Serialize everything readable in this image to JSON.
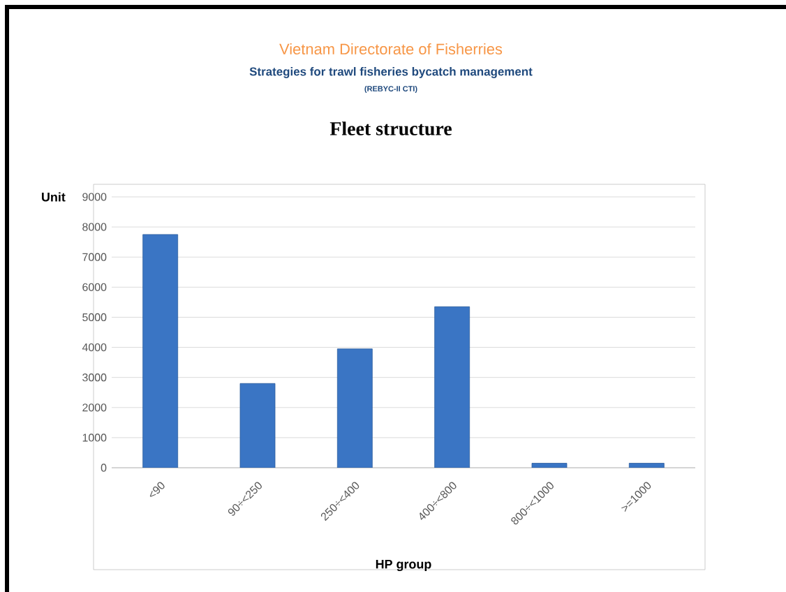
{
  "chart_data": {
    "type": "bar",
    "title": "Fleet structure",
    "subtitle": "Strategies for trawl fisheries bycatch management",
    "annotations": [
      "Vietnam Directorate of Fisherries",
      "(REBYC-II CTI)"
    ],
    "xlabel": "HP group",
    "ylabel": "Unit",
    "categories": [
      "<90",
      "90÷<250",
      "250÷<400",
      "400÷<800",
      "800÷<1000",
      ">=1000"
    ],
    "values": [
      7750,
      2800,
      3950,
      5350,
      150,
      150
    ],
    "color": "#3a75c4",
    "ylim": [
      0,
      9000
    ],
    "yticks": [
      0,
      1000,
      2000,
      3000,
      4000,
      5000,
      6000,
      7000,
      8000,
      9000
    ],
    "grid": "y"
  }
}
